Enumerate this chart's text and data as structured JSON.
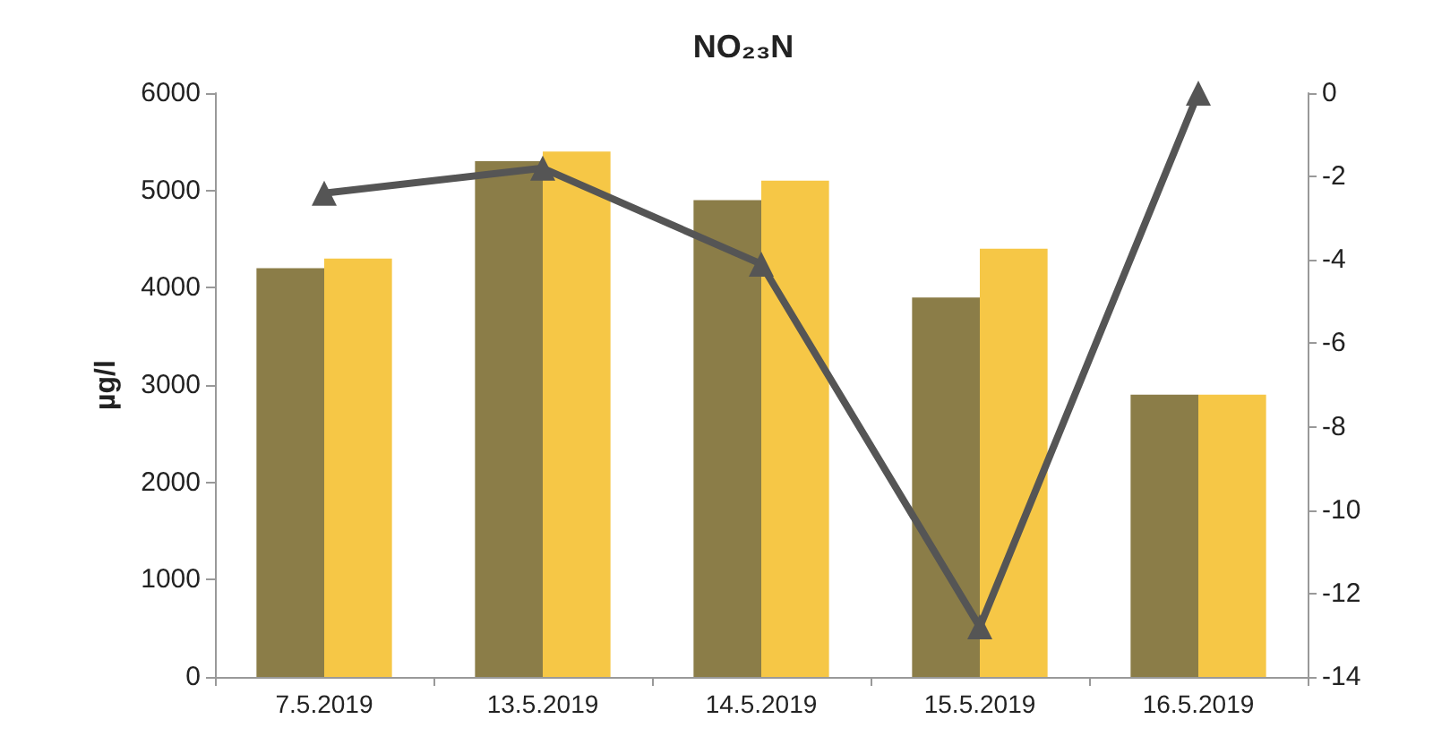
{
  "chart_data": {
    "type": "bar",
    "title": "NO₂₃N",
    "ylabel": "µg/l",
    "categories": [
      "7.5.2019",
      "13.5.2019",
      "14.5.2019",
      "15.5.2019",
      "16.5.2019"
    ],
    "series": [
      {
        "color": "#8b7d48",
        "values": [
          4200,
          5300,
          4900,
          3900,
          2900
        ]
      },
      {
        "color": "#f6c746",
        "values": [
          4300,
          5400,
          5100,
          4400,
          2900
        ]
      },
      {
        "type": "line",
        "axis": "y2",
        "color": "#555555",
        "values": [
          -2.4,
          -1.8,
          -4.1,
          -12.8,
          0
        ],
        "marker": "triangle"
      }
    ],
    "ylim": [
      0,
      6000
    ],
    "yticks": [
      0,
      1000,
      2000,
      3000,
      4000,
      5000,
      6000
    ],
    "y2lim": [
      -14,
      0
    ],
    "y2ticks": [
      -14,
      -12,
      -10,
      -8,
      -6,
      -4,
      -2,
      0
    ],
    "grid": false
  }
}
